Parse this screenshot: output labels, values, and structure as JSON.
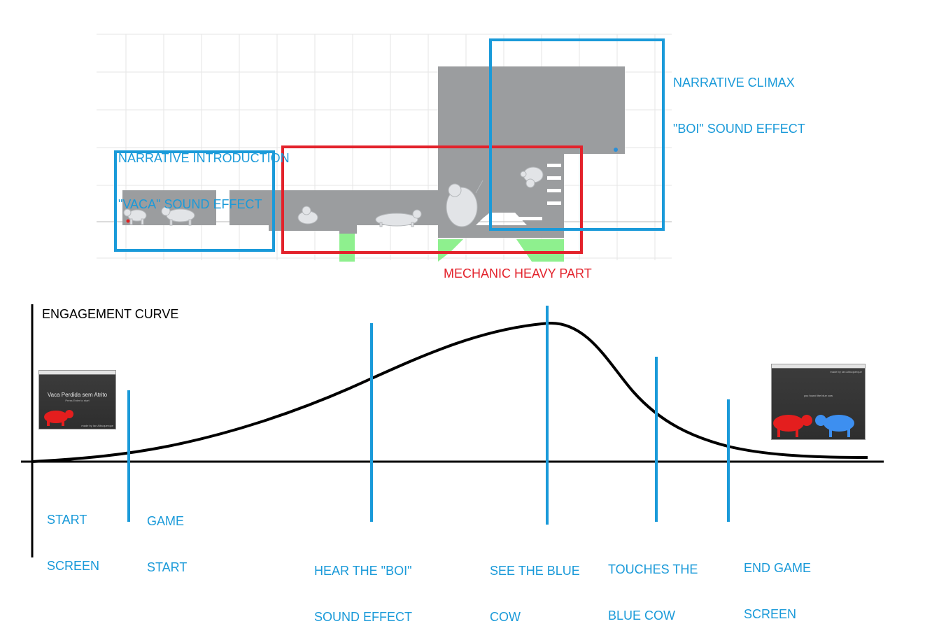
{
  "level_map": {
    "intro": {
      "label_line1": "NARRATIVE INTRODUCTION",
      "label_line2": "\"VACA\" SOUND EFFECT",
      "color": "#1a9ad9"
    },
    "mechanic": {
      "label": "MECHANIC HEAVY PART",
      "color": "#e3222b"
    },
    "climax": {
      "label_line1": "NARRATIVE CLIMAX",
      "label_line2": "\"BOI\" SOUND EFFECT",
      "color": "#1a9ad9"
    },
    "platform_color": "#9b9d9f",
    "goal_color": "#8ef08e"
  },
  "engagement": {
    "title": "ENGAGEMENT CURVE",
    "curve_color": "#000000",
    "marker_color": "#1a9ad9",
    "markers": [
      {
        "id": "start-screen",
        "line1": "START",
        "line2": "SCREEN"
      },
      {
        "id": "game-start",
        "line1": "GAME",
        "line2": "START"
      },
      {
        "id": "hear-boi",
        "line1": "HEAR THE \"BOI\"",
        "line2": "SOUND EFFECT"
      },
      {
        "id": "see-blue-cow",
        "line1": "SEE THE BLUE",
        "line2": "COW"
      },
      {
        "id": "touches-blue-cow",
        "line1": "TOUCHES THE",
        "line2": "BLUE COW"
      },
      {
        "id": "end-game-screen",
        "line1": "END GAME",
        "line2": "SCREEN"
      }
    ]
  },
  "start_thumbnail": {
    "title": "Vaca Perdida sem Atrito",
    "subtitle": "Press Enter to start",
    "credit": "made by Ian Albuquerque"
  },
  "end_thumbnail": {
    "credit": "made by Ian Albuquerque",
    "message": "you found the blue cow"
  }
}
